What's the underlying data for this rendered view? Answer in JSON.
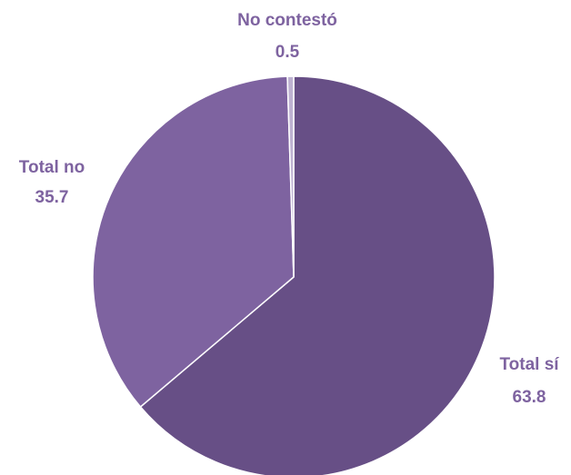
{
  "chart_data": {
    "type": "pie",
    "title": "",
    "categories": [
      "Total sí",
      "Total no",
      "No contestó"
    ],
    "values": [
      63.8,
      35.7,
      0.5
    ],
    "value_labels": [
      "63.8",
      "35.7",
      "0.5"
    ],
    "colors": [
      "#674F86",
      "#7E63A0",
      "#BEB2D1"
    ],
    "label_color": "#7E63A0",
    "start_angle_deg": 0,
    "direction": "clockwise",
    "legend": "none",
    "data_labels": "outside"
  }
}
